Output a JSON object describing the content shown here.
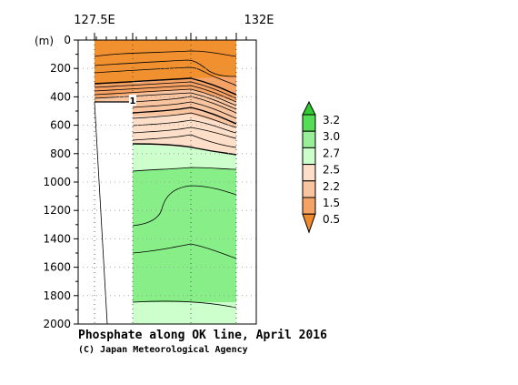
{
  "chart_data": {
    "type": "heatmap",
    "title": "Phosphate along OK line, April 2016",
    "credit": "(C) Japan Meteorological Agency",
    "x_tick_labels": [
      {
        "label": "127.5E",
        "lon": 127.5
      },
      {
        "label": "132E",
        "lon": 132.0
      }
    ],
    "xlim": [
      127.5,
      133.5
    ],
    "depth_unit": "(m)",
    "ylim": [
      0,
      2000
    ],
    "depth_ticks": [
      0,
      200,
      400,
      600,
      800,
      1000,
      1200,
      1400,
      1600,
      1800,
      2000
    ],
    "station_longitudes": [
      128.0,
      128.6,
      129.8,
      130.85,
      132.0
    ],
    "contour_label": "1",
    "colorbar": {
      "labels": [
        "3.2",
        "3.0",
        "2.7",
        "2.5",
        "2.2",
        "1.5",
        "0.5"
      ],
      "bins": [
        {
          "range": "> 3.2",
          "color": "#2ecc2e"
        },
        {
          "range": "3.0 - 3.2",
          "color": "#55dd55"
        },
        {
          "range": "2.7 - 3.0",
          "color": "#99ee99"
        },
        {
          "range": "2.5 - 2.7",
          "color": "#ccffcc"
        },
        {
          "range": "2.2 - 2.5",
          "color": "#fddfc9"
        },
        {
          "range": "1.5 - 2.2",
          "color": "#f9c4a0"
        },
        {
          "range": "0.5 - 1.5",
          "color": "#f4a265"
        },
        {
          "range": "< 0.5",
          "color": "#f08a2c"
        }
      ]
    },
    "colors": {
      "surface_orange": "#f0902f",
      "mid_orange": "#f4a265",
      "light_orange": "#f9c4a0",
      "pale_peach": "#fddfc9",
      "pale_green": "#ccffcc",
      "mid_green": "#99ee99",
      "green": "#88ee88"
    }
  }
}
